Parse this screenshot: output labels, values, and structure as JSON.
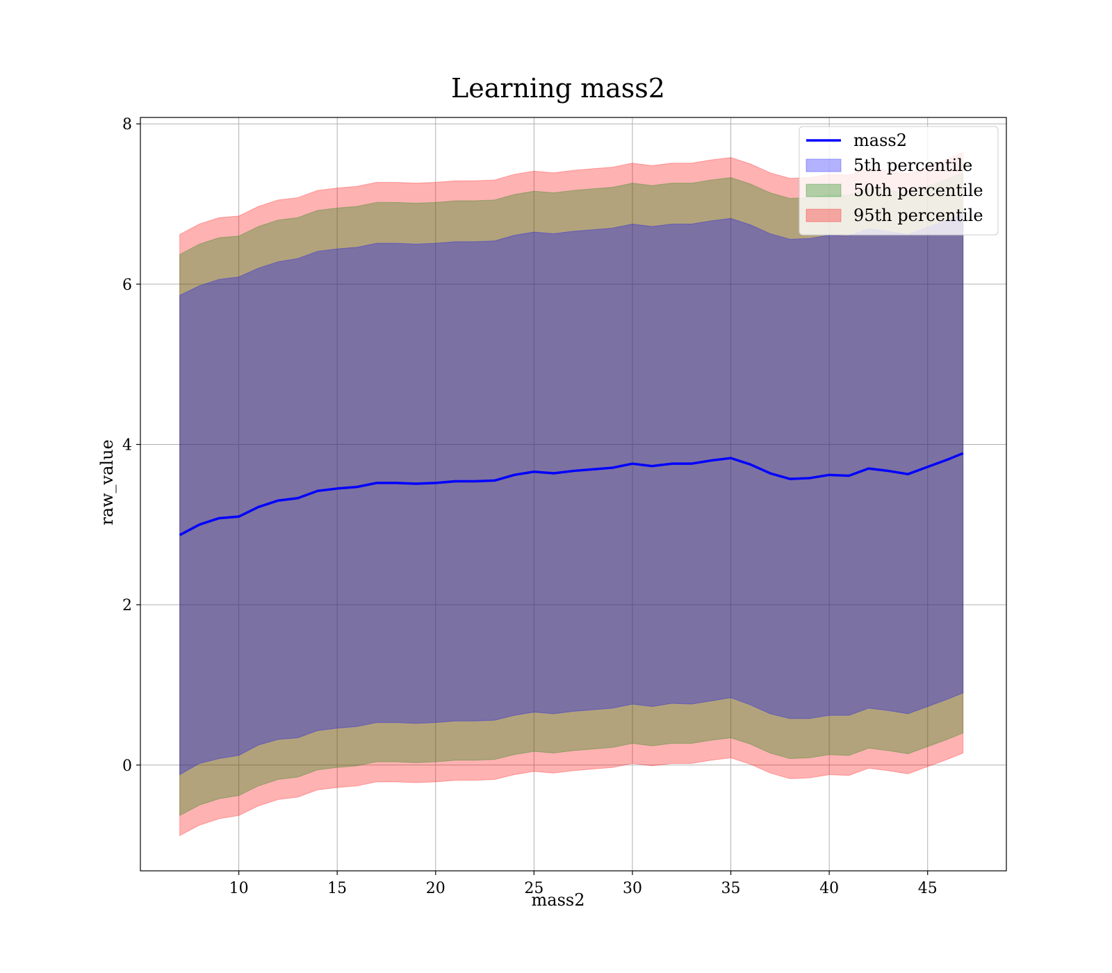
{
  "chart_data": {
    "type": "area",
    "title": "Learning mass2",
    "xlabel": "mass2",
    "ylabel": "raw_value",
    "xlim": [
      5,
      49
    ],
    "ylim": [
      -1.32,
      8.08
    ],
    "xticks": [
      10,
      15,
      20,
      25,
      30,
      35,
      40,
      45
    ],
    "yticks": [
      0,
      2,
      4,
      6,
      8
    ],
    "grid": true,
    "legend_position": "top-right",
    "x": [
      7,
      8,
      9,
      10,
      11,
      12,
      13,
      14,
      15,
      16,
      17,
      18,
      19,
      20,
      21,
      22,
      23,
      24,
      25,
      26,
      27,
      28,
      29,
      30,
      31,
      32,
      33,
      34,
      35,
      36,
      37,
      38,
      39,
      40,
      41,
      42,
      43,
      44,
      45,
      46,
      46.8
    ],
    "series": [
      {
        "name": "mass2",
        "kind": "line",
        "color": "#0000ff",
        "values": [
          2.87,
          3.0,
          3.08,
          3.1,
          3.22,
          3.3,
          3.33,
          3.42,
          3.45,
          3.47,
          3.52,
          3.52,
          3.51,
          3.52,
          3.54,
          3.54,
          3.55,
          3.62,
          3.66,
          3.64,
          3.67,
          3.69,
          3.71,
          3.76,
          3.73,
          3.76,
          3.76,
          3.8,
          3.83,
          3.75,
          3.64,
          3.57,
          3.58,
          3.62,
          3.61,
          3.7,
          3.67,
          3.63,
          3.72,
          3.81,
          3.89
        ]
      },
      {
        "name": "5th percentile",
        "kind": "band",
        "color": "#0000ff",
        "lower": [
          -0.12,
          0.02,
          0.08,
          0.12,
          0.25,
          0.32,
          0.34,
          0.43,
          0.46,
          0.48,
          0.53,
          0.53,
          0.52,
          0.53,
          0.55,
          0.55,
          0.56,
          0.62,
          0.66,
          0.64,
          0.67,
          0.69,
          0.71,
          0.76,
          0.73,
          0.77,
          0.76,
          0.8,
          0.84,
          0.75,
          0.64,
          0.58,
          0.58,
          0.62,
          0.62,
          0.71,
          0.68,
          0.64,
          0.73,
          0.82,
          0.9
        ],
        "upper": [
          5.86,
          5.98,
          6.06,
          6.09,
          6.2,
          6.28,
          6.32,
          6.41,
          6.44,
          6.46,
          6.51,
          6.51,
          6.5,
          6.51,
          6.53,
          6.53,
          6.54,
          6.61,
          6.65,
          6.63,
          6.66,
          6.68,
          6.7,
          6.75,
          6.72,
          6.75,
          6.75,
          6.79,
          6.82,
          6.74,
          6.63,
          6.56,
          6.57,
          6.61,
          6.6,
          6.69,
          6.66,
          6.62,
          6.71,
          6.8,
          6.88
        ]
      },
      {
        "name": "50th percentile",
        "kind": "band",
        "color": "#008000",
        "lower": [
          -0.63,
          -0.5,
          -0.42,
          -0.38,
          -0.26,
          -0.18,
          -0.15,
          -0.06,
          -0.03,
          -0.01,
          0.04,
          0.04,
          0.03,
          0.04,
          0.06,
          0.06,
          0.07,
          0.13,
          0.17,
          0.15,
          0.18,
          0.2,
          0.22,
          0.27,
          0.24,
          0.27,
          0.27,
          0.31,
          0.34,
          0.26,
          0.15,
          0.08,
          0.09,
          0.13,
          0.12,
          0.21,
          0.18,
          0.14,
          0.23,
          0.32,
          0.4
        ],
        "upper": [
          6.37,
          6.5,
          6.58,
          6.6,
          6.72,
          6.8,
          6.83,
          6.92,
          6.95,
          6.97,
          7.02,
          7.02,
          7.01,
          7.02,
          7.04,
          7.04,
          7.05,
          7.12,
          7.16,
          7.14,
          7.17,
          7.19,
          7.21,
          7.26,
          7.23,
          7.26,
          7.26,
          7.3,
          7.33,
          7.25,
          7.14,
          7.07,
          7.08,
          7.12,
          7.11,
          7.2,
          7.17,
          7.13,
          7.22,
          7.31,
          7.39
        ]
      },
      {
        "name": "95th percentile",
        "kind": "band",
        "color": "#ff0000",
        "lower": [
          -0.88,
          -0.75,
          -0.67,
          -0.63,
          -0.51,
          -0.43,
          -0.4,
          -0.31,
          -0.28,
          -0.26,
          -0.21,
          -0.21,
          -0.22,
          -0.21,
          -0.19,
          -0.19,
          -0.18,
          -0.12,
          -0.08,
          -0.1,
          -0.07,
          -0.05,
          -0.03,
          0.02,
          -0.01,
          0.02,
          0.02,
          0.06,
          0.09,
          0.01,
          -0.1,
          -0.17,
          -0.16,
          -0.12,
          -0.13,
          -0.04,
          -0.07,
          -0.11,
          -0.02,
          0.07,
          0.15
        ],
        "upper": [
          6.62,
          6.75,
          6.83,
          6.85,
          6.97,
          7.05,
          7.08,
          7.17,
          7.2,
          7.22,
          7.27,
          7.27,
          7.26,
          7.27,
          7.29,
          7.29,
          7.3,
          7.37,
          7.41,
          7.39,
          7.42,
          7.44,
          7.46,
          7.51,
          7.48,
          7.51,
          7.51,
          7.55,
          7.58,
          7.5,
          7.39,
          7.32,
          7.33,
          7.37,
          7.36,
          7.45,
          7.42,
          7.38,
          7.47,
          7.56,
          7.64
        ]
      }
    ]
  }
}
